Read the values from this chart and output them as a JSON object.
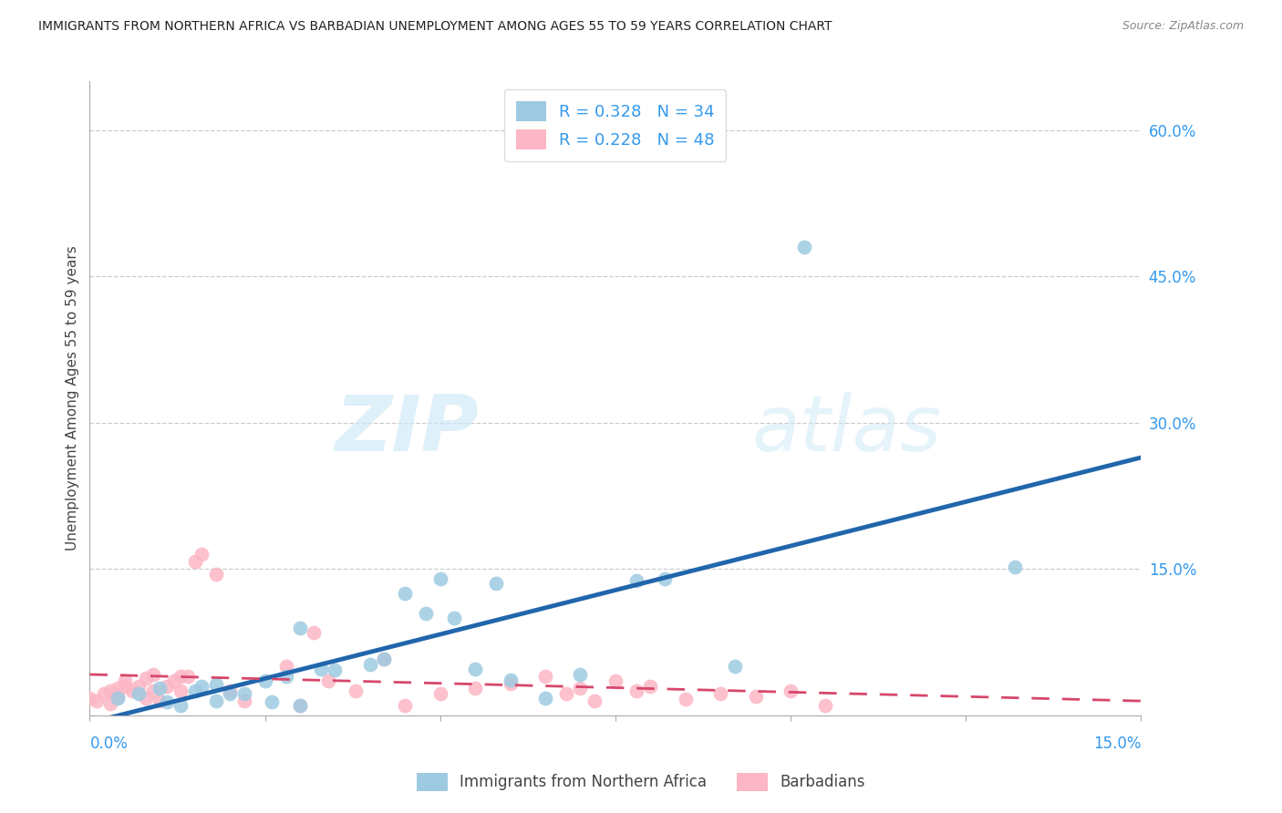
{
  "title": "IMMIGRANTS FROM NORTHERN AFRICA VS BARBADIAN UNEMPLOYMENT AMONG AGES 55 TO 59 YEARS CORRELATION CHART",
  "source": "Source: ZipAtlas.com",
  "ylabel": "Unemployment Among Ages 55 to 59 years",
  "ytick_vals": [
    0.15,
    0.3,
    0.45,
    0.6
  ],
  "ytick_labels": [
    "15.0%",
    "30.0%",
    "45.0%",
    "60.0%"
  ],
  "xlim": [
    0.0,
    0.15
  ],
  "ylim": [
    0.0,
    0.65
  ],
  "legend_r1": "R = 0.328",
  "legend_n1": "N = 34",
  "legend_r2": "R = 0.228",
  "legend_n2": "N = 48",
  "blue_color": "#9ecae1",
  "blue_line_color": "#2166ac",
  "pink_color": "#fcb6c5",
  "pink_line_color": "#d6476b",
  "grid_color": "#cccccc",
  "axis_color": "#aaaaaa",
  "accent_color": "#3399ee",
  "blue_x": [
    0.004,
    0.007,
    0.01,
    0.011,
    0.013,
    0.015,
    0.016,
    0.018,
    0.018,
    0.02,
    0.022,
    0.025,
    0.026,
    0.028,
    0.03,
    0.03,
    0.033,
    0.035,
    0.04,
    0.042,
    0.045,
    0.048,
    0.05,
    0.052,
    0.055,
    0.058,
    0.06,
    0.065,
    0.07,
    0.078,
    0.082,
    0.092,
    0.102,
    0.132
  ],
  "blue_y": [
    0.018,
    0.022,
    0.028,
    0.014,
    0.01,
    0.025,
    0.03,
    0.032,
    0.015,
    0.022,
    0.022,
    0.035,
    0.014,
    0.04,
    0.01,
    0.09,
    0.048,
    0.047,
    0.052,
    0.058,
    0.125,
    0.105,
    0.14,
    0.1,
    0.048,
    0.135,
    0.036,
    0.018,
    0.042,
    0.138,
    0.14,
    0.05,
    0.48,
    0.152
  ],
  "pink_x": [
    0.0,
    0.001,
    0.002,
    0.003,
    0.003,
    0.004,
    0.004,
    0.005,
    0.005,
    0.006,
    0.007,
    0.008,
    0.008,
    0.009,
    0.009,
    0.01,
    0.011,
    0.012,
    0.013,
    0.013,
    0.014,
    0.015,
    0.016,
    0.018,
    0.02,
    0.022,
    0.028,
    0.03,
    0.032,
    0.034,
    0.038,
    0.042,
    0.045,
    0.05,
    0.055,
    0.06,
    0.065,
    0.068,
    0.07,
    0.072,
    0.075,
    0.078,
    0.08,
    0.085,
    0.09,
    0.095,
    0.1,
    0.105
  ],
  "pink_y": [
    0.018,
    0.015,
    0.022,
    0.012,
    0.025,
    0.028,
    0.02,
    0.03,
    0.035,
    0.025,
    0.03,
    0.038,
    0.018,
    0.042,
    0.025,
    0.015,
    0.03,
    0.035,
    0.025,
    0.04,
    0.04,
    0.158,
    0.165,
    0.145,
    0.025,
    0.015,
    0.05,
    0.01,
    0.085,
    0.035,
    0.025,
    0.058,
    0.01,
    0.022,
    0.028,
    0.033,
    0.04,
    0.022,
    0.028,
    0.015,
    0.035,
    0.025,
    0.03,
    0.017,
    0.022,
    0.02,
    0.025,
    0.01
  ]
}
